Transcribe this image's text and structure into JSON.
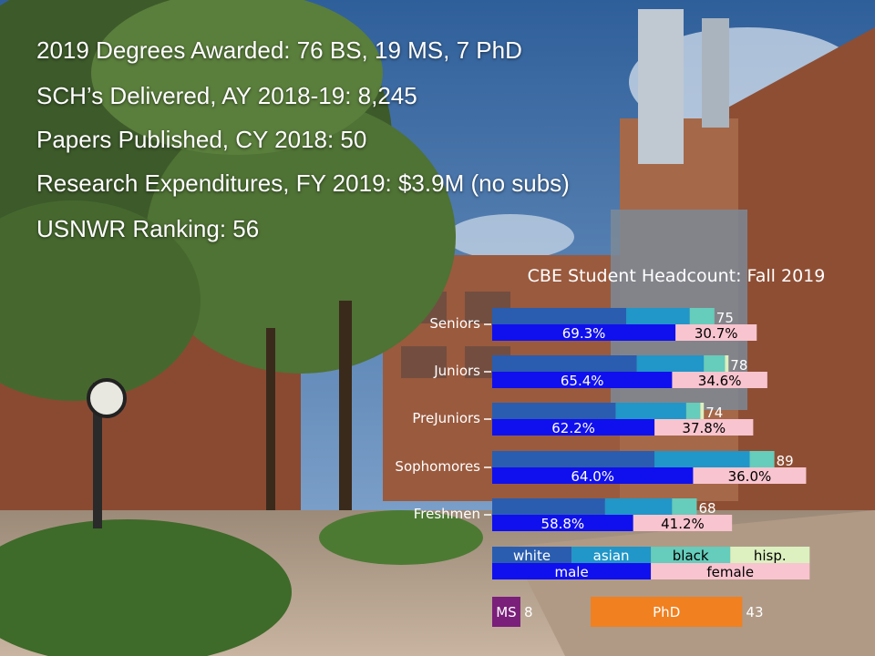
{
  "stats": [
    "2019 Degrees Awarded: 76 BS, 19 MS, 7 PhD",
    "SCH’s Delivered, AY 2018-19:  8,245",
    "Papers Published, CY 2018:  50",
    "Research Expenditures, FY 2019: $3.9M (no subs)",
    "USNWR Ranking: 56"
  ],
  "colors": {
    "white": "#2a5db0",
    "asian": "#2196c8",
    "black": "#66ccbb",
    "hisp": "#ddf0c0",
    "male": "#1010ee",
    "female": "#f8c4cf",
    "ms": "#7a1f7a",
    "phd": "#f08020"
  },
  "chart_data": {
    "type": "bar",
    "title": "CBE Student Headcount: Fall 2019",
    "categories": [
      "Seniors",
      "Juniors",
      "PreJuniors",
      "Sophomores",
      "Freshmen"
    ],
    "totals": [
      75,
      78,
      74,
      89,
      68
    ],
    "ethnicity_series": [
      {
        "name": "white",
        "values": [
          38,
          41,
          35,
          46,
          32
        ]
      },
      {
        "name": "asian",
        "values": [
          18,
          19,
          20,
          27,
          19
        ]
      },
      {
        "name": "black",
        "values": [
          7,
          6,
          4,
          7,
          7
        ]
      },
      {
        "name": "hisp.",
        "values": [
          0,
          1,
          1,
          0,
          0
        ]
      }
    ],
    "gender_series": [
      {
        "name": "male",
        "values": [
          69.3,
          65.4,
          62.2,
          64.0,
          58.8
        ],
        "labels": [
          "69.3%",
          "65.4%",
          "62.2%",
          "64.0%",
          "58.8%"
        ]
      },
      {
        "name": "female",
        "values": [
          30.7,
          34.6,
          37.8,
          36.0,
          41.2
        ],
        "labels": [
          "30.7%",
          "34.6%",
          "37.8%",
          "36.0%",
          "41.2%"
        ]
      }
    ],
    "legend_ethnicity": [
      "white",
      "asian",
      "black",
      "hisp."
    ],
    "legend_gender": [
      "male",
      "female"
    ],
    "graduate": [
      {
        "name": "MS",
        "value": 8
      },
      {
        "name": "PhD",
        "value": 43
      }
    ]
  }
}
